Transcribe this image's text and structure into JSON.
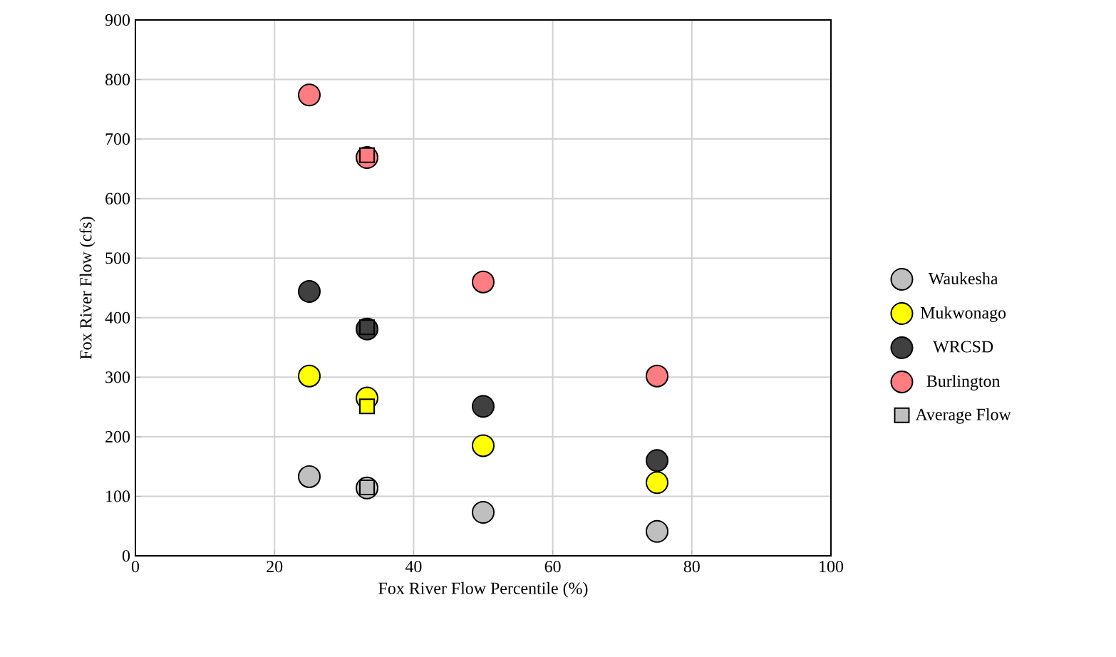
{
  "chart_data": {
    "type": "scatter",
    "xlabel": "Fox River Flow Percentile (%)",
    "ylabel": "Fox River Flow (cfs)",
    "xlim": [
      0,
      100
    ],
    "xticks": [
      0,
      20,
      40,
      60,
      80,
      100
    ],
    "ylim": [
      0,
      900
    ],
    "yticks": [
      0,
      100,
      200,
      300,
      400,
      500,
      600,
      700,
      800,
      900
    ],
    "grid": true,
    "legend": "right",
    "series": [
      {
        "name": "Waukesha",
        "color": "#bfbfbf",
        "marker": "circle",
        "x": [
          25,
          33.3,
          50,
          75
        ],
        "values": [
          133,
          114,
          73,
          41
        ]
      },
      {
        "name": "Mukwonago",
        "color": "#ffff00",
        "marker": "circle",
        "x": [
          25,
          33.3,
          50,
          75
        ],
        "values": [
          302,
          265,
          185,
          123
        ]
      },
      {
        "name": "WRCSD",
        "color": "#404040",
        "marker": "circle",
        "x": [
          25,
          33.3,
          50,
          75
        ],
        "values": [
          444,
          381,
          251,
          160
        ]
      },
      {
        "name": "Burlington",
        "color": "#ff7c80",
        "marker": "circle",
        "x": [
          25,
          33.3,
          50,
          75
        ],
        "values": [
          774,
          669,
          460,
          302
        ]
      },
      {
        "name": "Average Flow",
        "colors": [
          "#bfbfbf",
          "#ffff00",
          "#404040",
          "#ff7c80"
        ],
        "marker": "square",
        "x": [
          33.3,
          33.3,
          33.3,
          33.3
        ],
        "values": [
          115,
          251,
          384,
          673
        ]
      }
    ]
  }
}
